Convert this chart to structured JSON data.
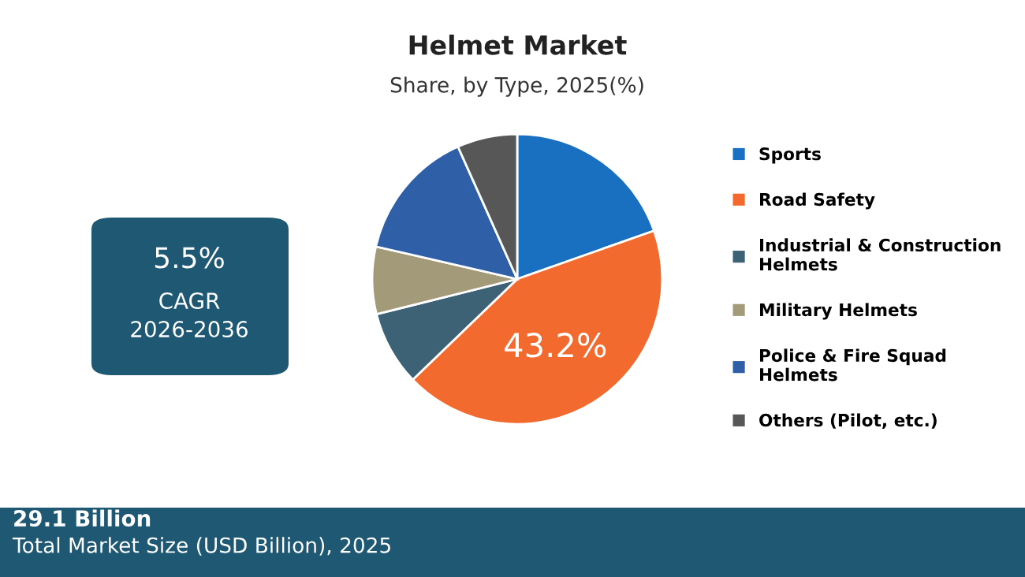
{
  "chart_data": {
    "type": "pie",
    "title": "Helmet Market",
    "subtitle": "Share, by Type, 2025(%)",
    "categories": [
      "Sports",
      "Road Safety",
      "Industrial & Construction Helmets",
      "Military Helmets",
      "Police & Fire Squad Helmets",
      "Others (Pilot, etc.)"
    ],
    "values": [
      19.6,
      43.2,
      8.3,
      7.5,
      14.7,
      6.7
    ],
    "colors": [
      "#1a70c0",
      "#f26a2e",
      "#3d6275",
      "#a39a7a",
      "#2f5fa6",
      "#575757"
    ],
    "value_labels": [
      null,
      "43.2%",
      null,
      null,
      null,
      null
    ],
    "legend": "right",
    "annotations": [
      "5.5%",
      "CAGR",
      "2026-2036",
      "29.1 Billion",
      "Total Market Size (USD Billion), 2025"
    ]
  }
}
